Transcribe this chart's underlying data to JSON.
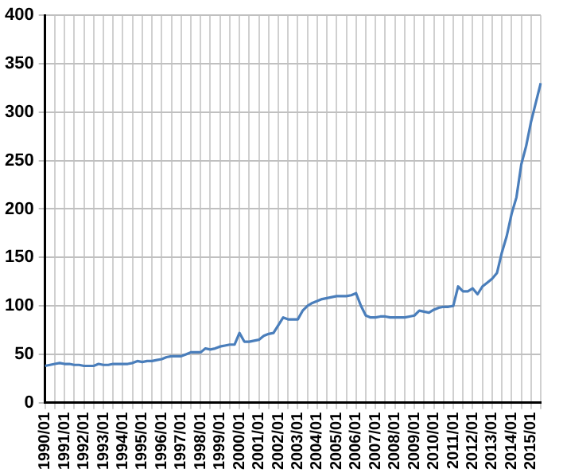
{
  "chart_data": {
    "type": "line",
    "categories": [
      "1990/01",
      null,
      null,
      null,
      "1991/01",
      null,
      null,
      null,
      "1992/01",
      null,
      null,
      null,
      "1993/01",
      null,
      null,
      null,
      "1994/01",
      null,
      null,
      null,
      "1995/01",
      null,
      null,
      null,
      "1996/01",
      null,
      null,
      null,
      "1997/01",
      null,
      null,
      null,
      "1998/01",
      null,
      null,
      null,
      "1999/01",
      null,
      null,
      null,
      "2000/01",
      null,
      null,
      null,
      "2001/01",
      null,
      null,
      null,
      "2002/01",
      null,
      null,
      null,
      "2003/01",
      null,
      null,
      null,
      "2004/01",
      null,
      null,
      null,
      "2005/01",
      null,
      null,
      null,
      "2006/01",
      null,
      null,
      null,
      "2007/01",
      null,
      null,
      null,
      "2008/01",
      null,
      null,
      null,
      "2009/01",
      null,
      null,
      null,
      "2010/01",
      null,
      null,
      null,
      "2011/01",
      null,
      null,
      null,
      "2012/01",
      null,
      null,
      null,
      "2013/01",
      null,
      null,
      null,
      "2014/01",
      null,
      null,
      null,
      "2015/01",
      null,
      null
    ],
    "series": [
      {
        "color": "#4a7ebb",
        "values": [
          38,
          39,
          40,
          41,
          40,
          40,
          39,
          39,
          38,
          38,
          38,
          40,
          39,
          39,
          40,
          40,
          40,
          40,
          41,
          43,
          42,
          43,
          43,
          44,
          45,
          47,
          48,
          48,
          48,
          50,
          52,
          52,
          52,
          56,
          55,
          56,
          58,
          59,
          60,
          60,
          72,
          63,
          63,
          64,
          65,
          69,
          71,
          72,
          80,
          88,
          86,
          86,
          86,
          95,
          100,
          103,
          105,
          107,
          108,
          109,
          110,
          110,
          110,
          111,
          113,
          100,
          90,
          88,
          88,
          89,
          89,
          88,
          88,
          88,
          88,
          89,
          90,
          95,
          94,
          93,
          96,
          98,
          99,
          99,
          100,
          120,
          115,
          115,
          118,
          112,
          120,
          124,
          128,
          134,
          155,
          172,
          195,
          212,
          246,
          265,
          290,
          310,
          330
        ]
      }
    ],
    "ylim": [
      0,
      400
    ],
    "yticks": [
      0,
      50,
      100,
      150,
      200,
      250,
      300,
      350,
      400
    ],
    "grid": true,
    "legend": false,
    "marker": "none",
    "line_style": "solid"
  }
}
